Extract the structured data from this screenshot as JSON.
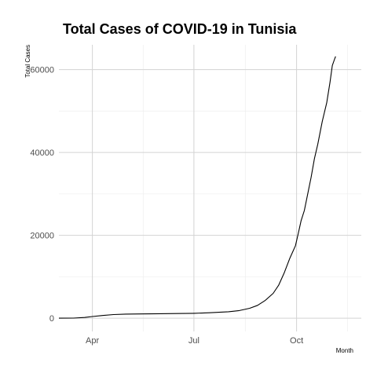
{
  "chart_data": {
    "type": "line",
    "title": "Total Cases of COVID-19 in Tunisia",
    "xlabel": "Month",
    "ylabel": "Total Cases",
    "x_scale": "date",
    "xlim": [
      "2020-03-02",
      "2020-11-28"
    ],
    "ylim": [
      -3200,
      66000
    ],
    "grid": true,
    "x_ticks": [
      {
        "date": "2020-04-01",
        "label": "Apr"
      },
      {
        "date": "2020-07-01",
        "label": "Jul"
      },
      {
        "date": "2020-10-01",
        "label": "Oct"
      }
    ],
    "y_ticks": [
      {
        "value": 0,
        "label": "0"
      },
      {
        "value": 20000,
        "label": "20000"
      },
      {
        "value": 40000,
        "label": "40000"
      },
      {
        "value": 60000,
        "label": "60000"
      }
    ],
    "series": [
      {
        "color": "#000000",
        "points": [
          {
            "x": "2020-03-02",
            "y": 1
          },
          {
            "x": "2020-03-15",
            "y": 20
          },
          {
            "x": "2020-03-25",
            "y": 170
          },
          {
            "x": "2020-04-01",
            "y": 400
          },
          {
            "x": "2020-04-10",
            "y": 650
          },
          {
            "x": "2020-04-20",
            "y": 880
          },
          {
            "x": "2020-05-01",
            "y": 990
          },
          {
            "x": "2020-05-15",
            "y": 1035
          },
          {
            "x": "2020-06-01",
            "y": 1080
          },
          {
            "x": "2020-06-15",
            "y": 1120
          },
          {
            "x": "2020-07-01",
            "y": 1180
          },
          {
            "x": "2020-07-15",
            "y": 1320
          },
          {
            "x": "2020-08-01",
            "y": 1550
          },
          {
            "x": "2020-08-10",
            "y": 1800
          },
          {
            "x": "2020-08-20",
            "y": 2400
          },
          {
            "x": "2020-08-27",
            "y": 3100
          },
          {
            "x": "2020-09-03",
            "y": 4300
          },
          {
            "x": "2020-09-10",
            "y": 6000
          },
          {
            "x": "2020-09-15",
            "y": 8000
          },
          {
            "x": "2020-09-20",
            "y": 11000
          },
          {
            "x": "2020-09-25",
            "y": 14500
          },
          {
            "x": "2020-09-30",
            "y": 17500
          },
          {
            "x": "2020-10-03",
            "y": 21000
          },
          {
            "x": "2020-10-05",
            "y": 23500
          },
          {
            "x": "2020-10-08",
            "y": 26000
          },
          {
            "x": "2020-10-11",
            "y": 30000
          },
          {
            "x": "2020-10-14",
            "y": 34000
          },
          {
            "x": "2020-10-17",
            "y": 38500
          },
          {
            "x": "2020-10-20",
            "y": 42000
          },
          {
            "x": "2020-10-24",
            "y": 47500
          },
          {
            "x": "2020-10-28",
            "y": 52000
          },
          {
            "x": "2020-10-31",
            "y": 57000
          },
          {
            "x": "2020-11-02",
            "y": 61000
          },
          {
            "x": "2020-11-04",
            "y": 62500
          },
          {
            "x": "2020-11-05",
            "y": 63200
          }
        ]
      }
    ]
  }
}
